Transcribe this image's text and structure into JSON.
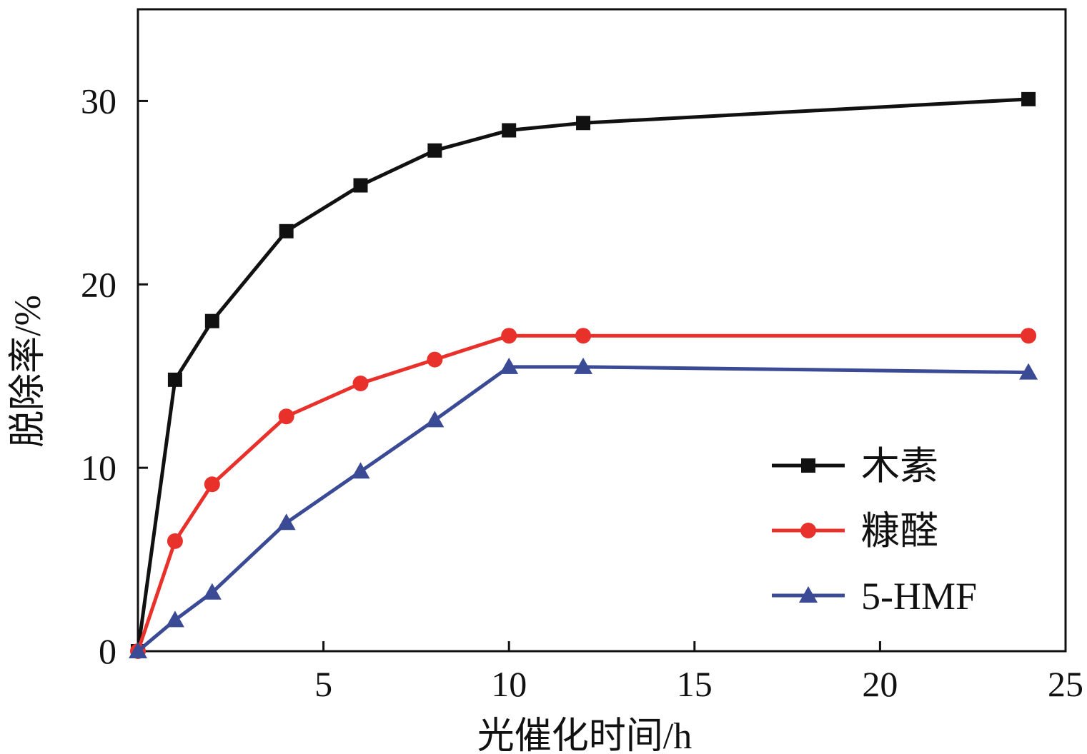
{
  "chart_data": {
    "type": "line",
    "xlabel": "光催化时间/h",
    "ylabel": "脱除率/%",
    "xlim": [
      0,
      25
    ],
    "ylim": [
      0,
      35
    ],
    "xticks": [
      5,
      10,
      15,
      20,
      25
    ],
    "yticks": [
      0,
      10,
      20,
      30
    ],
    "x": [
      0,
      1,
      2,
      4,
      6,
      8,
      10,
      12,
      24
    ],
    "grid": false,
    "legend_position": "lower-right",
    "series": [
      {
        "name": "木素",
        "marker": "square",
        "color": "#111111",
        "values": [
          0,
          14.8,
          18.0,
          22.9,
          25.4,
          27.3,
          28.4,
          28.8,
          30.1
        ]
      },
      {
        "name": "糠醛",
        "marker": "circle",
        "color": "#e8312b",
        "values": [
          0,
          6.0,
          9.1,
          12.8,
          14.6,
          15.9,
          17.2,
          17.2,
          17.2
        ]
      },
      {
        "name": "5-HMF",
        "marker": "triangle",
        "color": "#3a4a94",
        "values": [
          0,
          1.7,
          3.2,
          7.0,
          9.8,
          12.6,
          15.5,
          15.5,
          15.2
        ]
      }
    ]
  }
}
